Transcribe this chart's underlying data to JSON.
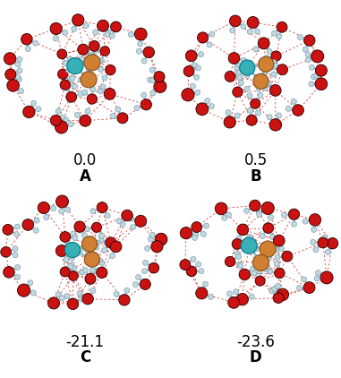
{
  "panels": [
    {
      "label": "A",
      "energy": "0.0",
      "row": 0,
      "col": 0,
      "seed": 42
    },
    {
      "label": "B",
      "energy": "0.5",
      "row": 0,
      "col": 1,
      "seed": 123
    },
    {
      "label": "C",
      "energy": "-21.1",
      "row": 1,
      "col": 0,
      "seed": 77
    },
    {
      "label": "D",
      "energy": "-23.6",
      "row": 1,
      "col": 1,
      "seed": 200
    }
  ],
  "background_color": "#ffffff",
  "energy_fontsize": 12,
  "label_fontsize": 12,
  "fig_width": 3.81,
  "fig_height": 4.22,
  "dpi": 100,
  "water_color": "#cc1111",
  "hydrogen_color": "#c0d8e0",
  "bond_color": "#b0c8d4",
  "hbond_color": "#cc1111",
  "carbon_color": "#d08030",
  "nitrogen_color": "#38b0b8",
  "o_edge_color": "#220000",
  "h_edge_color": "#7090a0",
  "c_edge_color": "#805020",
  "n_edge_color": "#007888"
}
